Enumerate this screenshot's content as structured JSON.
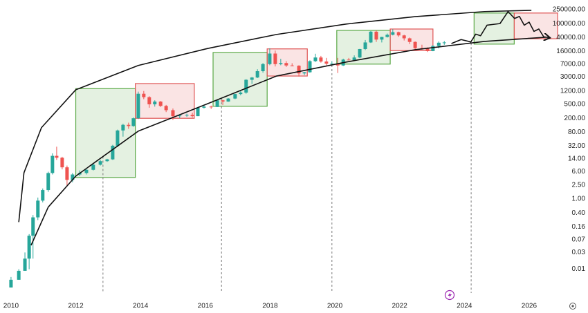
{
  "chart_data": {
    "type": "candlestick",
    "log_scale": true,
    "xlim": [
      2009.66,
      2026.75
    ],
    "xticks": [
      2010,
      2012,
      2014,
      2016,
      2018,
      2020,
      2022,
      2024,
      2026
    ],
    "ylim": [
      0.0016,
      470000
    ],
    "yticks": [
      0.01,
      0.03,
      0.07,
      0.16,
      {
        "value": 0.4,
        "label": "0.40"
      },
      {
        "value": 1,
        "label": "1.00"
      },
      {
        "value": 2.5,
        "label": "2.50"
      },
      {
        "value": 6,
        "label": "6.00"
      },
      {
        "value": 14,
        "label": "14.00"
      },
      {
        "value": 32,
        "label": "32.00"
      },
      {
        "value": 80,
        "label": "80.00"
      },
      {
        "value": 200,
        "label": "200.00"
      },
      {
        "value": 500,
        "label": "500.00"
      },
      {
        "value": 1200,
        "label": "1200.00"
      },
      {
        "value": 3000,
        "label": "3000.00"
      },
      {
        "value": 7000,
        "label": "7000.00"
      },
      {
        "value": 16000,
        "label": "16000.00"
      },
      {
        "value": 40000,
        "label": "40000.00"
      },
      {
        "value": 100000,
        "label": "100000.00"
      },
      {
        "value": 250000,
        "label": "250000.00"
      }
    ],
    "up_color": "#26a69a",
    "down_color": "#ef5350",
    "x": [
      2010.0,
      2010.24,
      2010.43,
      2010.56,
      2010.68,
      2010.83,
      2010.98,
      2011.15,
      2011.28,
      2011.41,
      2011.58,
      2011.73,
      2011.9,
      2012.12,
      2012.33,
      2012.54,
      2012.76,
      2012.97,
      2013.14,
      2013.29,
      2013.46,
      2013.63,
      2013.78,
      2013.93,
      2014.1,
      2014.27,
      2014.44,
      2014.62,
      2014.79,
      2015.0,
      2015.21,
      2015.43,
      2015.6,
      2015.77,
      2015.96,
      2016.18,
      2016.37,
      2016.54,
      2016.71,
      2016.92,
      2017.09,
      2017.26,
      2017.44,
      2017.61,
      2017.78,
      2017.99,
      2018.16,
      2018.33,
      2018.5,
      2018.68,
      2018.89,
      2019.06,
      2019.23,
      2019.4,
      2019.57,
      2019.74,
      2019.91,
      2020.09,
      2020.26,
      2020.43,
      2020.6,
      2020.77,
      2020.94,
      2021.11,
      2021.28,
      2021.45,
      2021.62,
      2021.79,
      2021.97,
      2022.14,
      2022.31,
      2022.48,
      2022.69,
      2022.86,
      2023.03,
      2023.21,
      2023.38
    ],
    "ohlc": [
      [
        0.003,
        0.006,
        0.003,
        0.005
      ],
      [
        0.005,
        0.01,
        0.005,
        0.009
      ],
      [
        0.009,
        0.03,
        0.009,
        0.02
      ],
      [
        0.02,
        0.1,
        0.01,
        0.09
      ],
      [
        0.09,
        0.35,
        0.02,
        0.3
      ],
      [
        0.3,
        1.1,
        0.25,
        0.9
      ],
      [
        0.9,
        2,
        0.8,
        1.8
      ],
      [
        1.8,
        6,
        1.6,
        5.5
      ],
      [
        5.5,
        20,
        5,
        17
      ],
      [
        17,
        31,
        13,
        15
      ],
      [
        15,
        16,
        7,
        8
      ],
      [
        8,
        9,
        2.3,
        3.5
      ],
      [
        3.5,
        5.5,
        3,
        5
      ],
      [
        5,
        6.5,
        4.5,
        5.5
      ],
      [
        5.5,
        7,
        5,
        6.8
      ],
      [
        6.8,
        10,
        6.5,
        9.5
      ],
      [
        9.5,
        13,
        9,
        12
      ],
      [
        12,
        14,
        11.5,
        13.5
      ],
      [
        13.5,
        35,
        13,
        33
      ],
      [
        33,
        95,
        30,
        90
      ],
      [
        90,
        140,
        60,
        130
      ],
      [
        130,
        150,
        100,
        120
      ],
      [
        120,
        210,
        115,
        200
      ],
      [
        200,
        1150,
        190,
        1000
      ],
      [
        1000,
        1200,
        700,
        800
      ],
      [
        800,
        850,
        400,
        500
      ],
      [
        500,
        650,
        430,
        600
      ],
      [
        600,
        620,
        420,
        450
      ],
      [
        450,
        480,
        300,
        340
      ],
      [
        340,
        380,
        180,
        230
      ],
      [
        230,
        260,
        200,
        240
      ],
      [
        240,
        270,
        220,
        250
      ],
      [
        250,
        290,
        210,
        230
      ],
      [
        230,
        420,
        230,
        400
      ],
      [
        400,
        470,
        380,
        430
      ],
      [
        430,
        460,
        370,
        420
      ],
      [
        420,
        700,
        420,
        650
      ],
      [
        650,
        680,
        480,
        600
      ],
      [
        600,
        750,
        590,
        730
      ],
      [
        730,
        1000,
        700,
        980
      ],
      [
        980,
        1200,
        900,
        1080
      ],
      [
        1080,
        2600,
        1000,
        2500
      ],
      [
        2500,
        3000,
        1900,
        2900
      ],
      [
        2900,
        5000,
        2800,
        4400
      ],
      [
        4400,
        7500,
        4000,
        7000
      ],
      [
        7000,
        19800,
        6500,
        14000
      ],
      [
        14000,
        17000,
        6000,
        7000
      ],
      [
        7000,
        9900,
        6500,
        7500
      ],
      [
        7500,
        8500,
        5800,
        6400
      ],
      [
        6400,
        7400,
        6100,
        6300
      ],
      [
        6300,
        6500,
        3100,
        3800
      ],
      [
        3800,
        4200,
        3400,
        4100
      ],
      [
        4100,
        9000,
        4000,
        8500
      ],
      [
        8500,
        13800,
        8000,
        10800
      ],
      [
        10800,
        12000,
        7700,
        8300
      ],
      [
        8300,
        10500,
        6500,
        7200
      ],
      [
        7200,
        8500,
        6500,
        7200
      ],
      [
        7200,
        10500,
        3900,
        6400
      ],
      [
        6400,
        10000,
        6200,
        9400
      ],
      [
        9400,
        10500,
        8900,
        9100
      ],
      [
        9100,
        12400,
        9000,
        10800
      ],
      [
        10800,
        19000,
        10400,
        18800
      ],
      [
        18800,
        34000,
        17600,
        29000
      ],
      [
        29000,
        61000,
        28000,
        58800
      ],
      [
        58800,
        64800,
        30000,
        35000
      ],
      [
        35000,
        42000,
        29000,
        41500
      ],
      [
        41500,
        52000,
        40000,
        48000
      ],
      [
        48000,
        69000,
        46000,
        57000
      ],
      [
        57000,
        59000,
        42000,
        46000
      ],
      [
        46000,
        48000,
        33000,
        38000
      ],
      [
        38000,
        40000,
        26000,
        30000
      ],
      [
        30000,
        31000,
        17600,
        20000
      ],
      [
        20000,
        25000,
        18000,
        19400
      ],
      [
        19400,
        21000,
        15500,
        16500
      ],
      [
        16500,
        24000,
        16300,
        23000
      ],
      [
        23000,
        31000,
        19600,
        28500
      ],
      [
        28500,
        31800,
        24800,
        29000
      ]
    ],
    "projection": {
      "color": "#111111",
      "x": [
        2023.6,
        2023.9,
        2024.2,
        2024.35,
        2024.5,
        2024.7,
        2024.9,
        2025.1,
        2025.35,
        2025.55,
        2025.7,
        2025.85,
        2026.0,
        2026.15,
        2026.3,
        2026.45,
        2026.6
      ],
      "values": [
        27000,
        35000,
        30000,
        50000,
        45000,
        90000,
        95000,
        100000,
        220000,
        140000,
        160000,
        90000,
        110000,
        60000,
        70000,
        42000,
        40000
      ]
    },
    "channel": [
      {
        "color": "#111111",
        "x": [
          2010.24,
          2010.4,
          2010.94,
          2012.0,
          2013.93,
          2016.07,
          2018.2,
          2020.35,
          2022.48,
          2024.62,
          2026.07
        ],
        "values": [
          0.22,
          5.6,
          108,
          1300,
          6400,
          19500,
          49000,
          97000,
          158000,
          220000,
          239000
        ]
      },
      {
        "color": "#111111",
        "x": [
          2010.62,
          2011.15,
          2012.0,
          2013.93,
          2016.07,
          2018.2,
          2020.35,
          2022.48,
          2024.62,
          2026.54
        ],
        "values": [
          0.048,
          0.59,
          4.5,
          86,
          520,
          3200,
          8000,
          18000,
          31000,
          41000
        ]
      }
    ],
    "zones": [
      {
        "x": [
          2012.0,
          2013.84
        ],
        "y": [
          4.1,
          1400
        ],
        "color": "#5aa845"
      },
      {
        "x": [
          2013.84,
          2015.66
        ],
        "y": [
          200,
          1950
        ],
        "color": "#e05555"
      },
      {
        "x": [
          2016.24,
          2017.91
        ],
        "y": [
          440,
          15000
        ],
        "color": "#5aa845"
      },
      {
        "x": [
          2017.91,
          2019.15
        ],
        "y": [
          3200,
          19000
        ],
        "color": "#e05555"
      },
      {
        "x": [
          2020.06,
          2021.71
        ],
        "y": [
          7000,
          64000
        ],
        "color": "#5aa845"
      },
      {
        "x": [
          2021.71,
          2023.03
        ],
        "y": [
          17000,
          70000
        ],
        "color": "#e05555"
      },
      {
        "x": [
          2024.3,
          2025.54
        ],
        "y": [
          26000,
          200000
        ],
        "color": "#5aa845"
      },
      {
        "x": [
          2025.54,
          2026.88
        ],
        "y": [
          37000,
          200000
        ],
        "color": "#e05555"
      }
    ],
    "halvings": [
      2012.84,
      2016.5,
      2019.91,
      2024.21
    ]
  }
}
